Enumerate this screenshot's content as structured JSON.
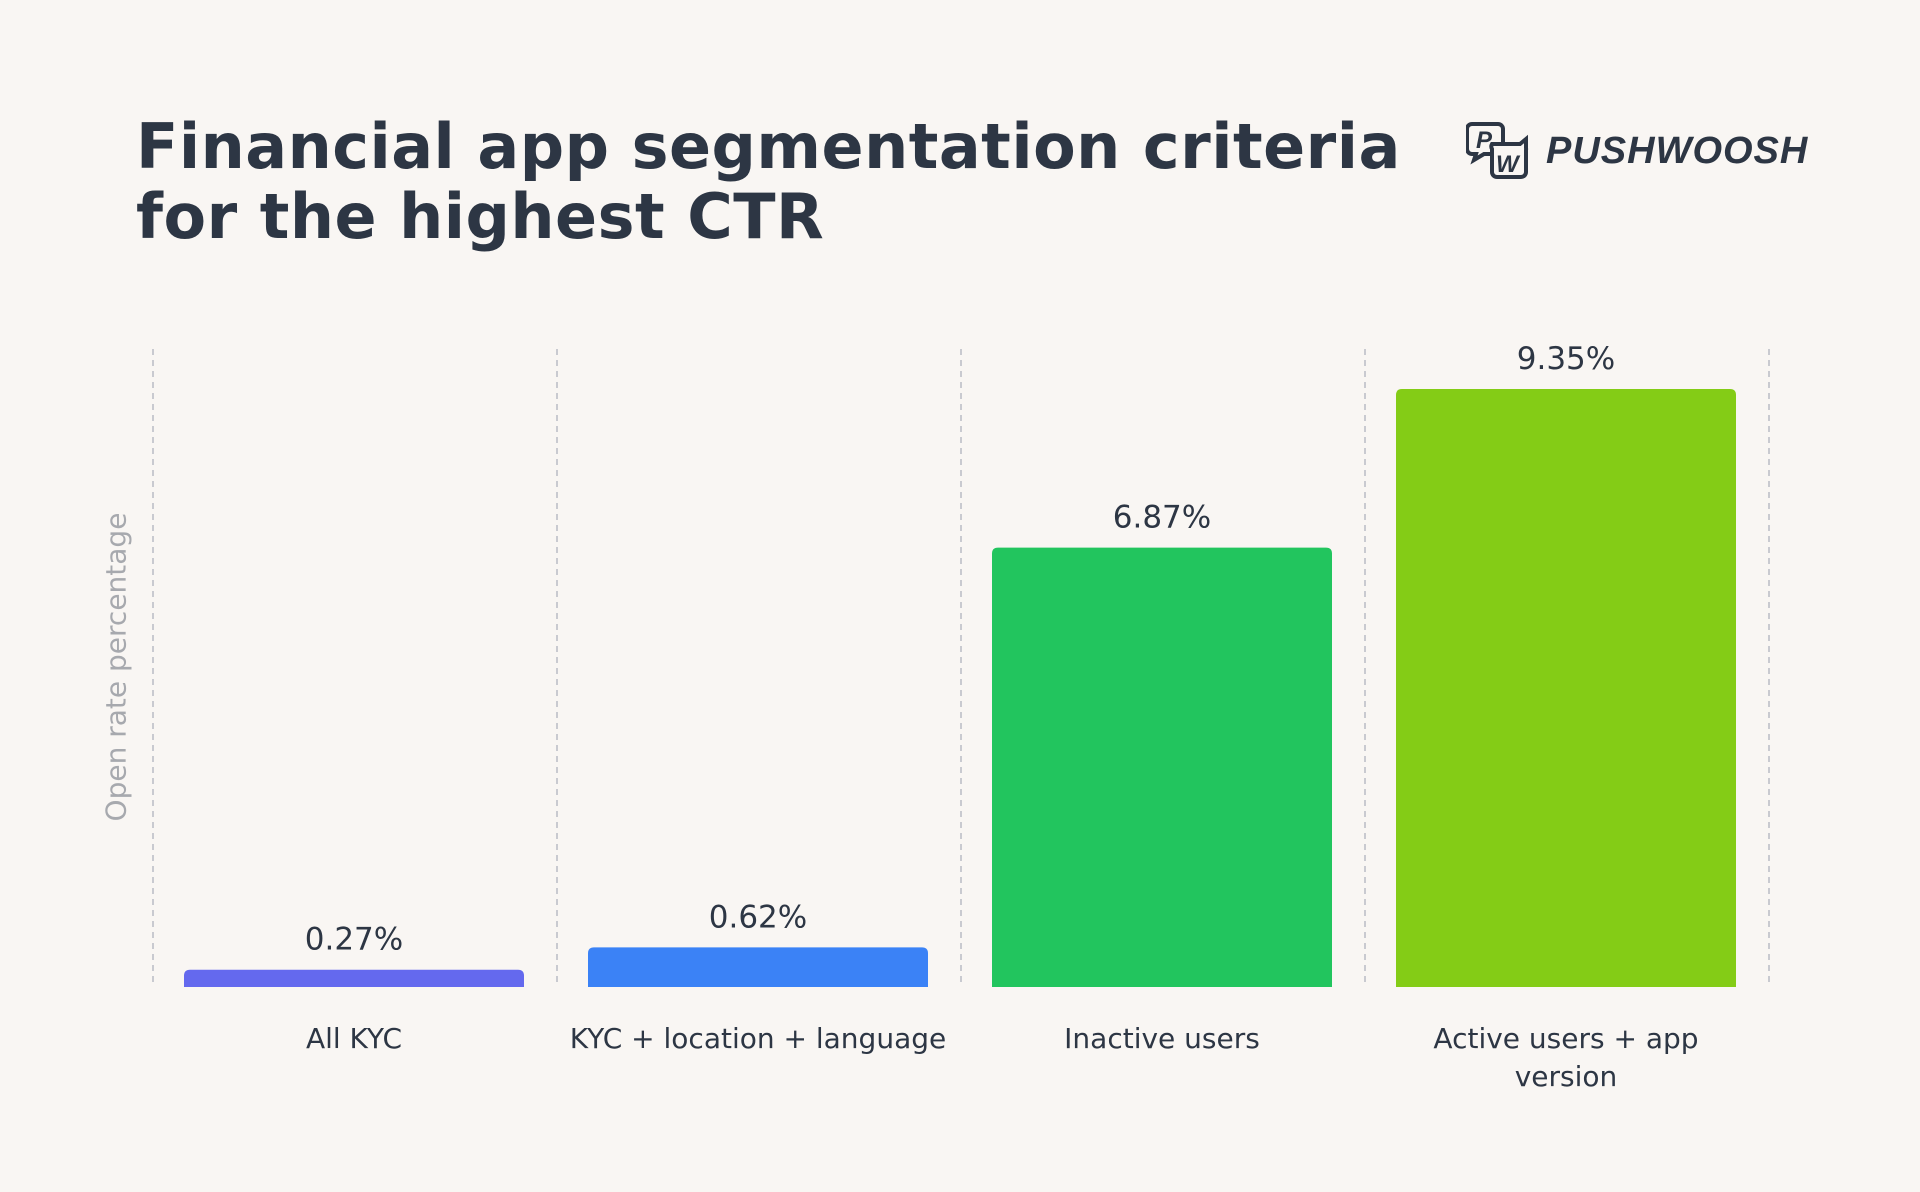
{
  "title_line1": "Financial app segmentation criteria",
  "title_line2": "for the highest CTR",
  "brand": {
    "name": "PUSHWOOSH",
    "icon": "pw-speech-bubbles-logo"
  },
  "chart_data": {
    "type": "bar",
    "title": "Financial app segmentation criteria for the highest CTR",
    "xlabel": "",
    "ylabel": "Open rate percentage",
    "categories": [
      [
        "All KYC"
      ],
      [
        "KYC + location + language"
      ],
      [
        "Inactive users"
      ],
      [
        "Active users + app",
        "version"
      ]
    ],
    "values": [
      0.27,
      0.62,
      6.87,
      9.35
    ],
    "value_labels": [
      "0.27%",
      "0.62%",
      "6.87%",
      "9.35%"
    ],
    "colors": [
      "#6469ee",
      "#3b82f6",
      "#22c55e",
      "#84cc16"
    ],
    "ylim": [
      0,
      9.35
    ],
    "grid": "vertical dashed separators",
    "legend": "none"
  }
}
